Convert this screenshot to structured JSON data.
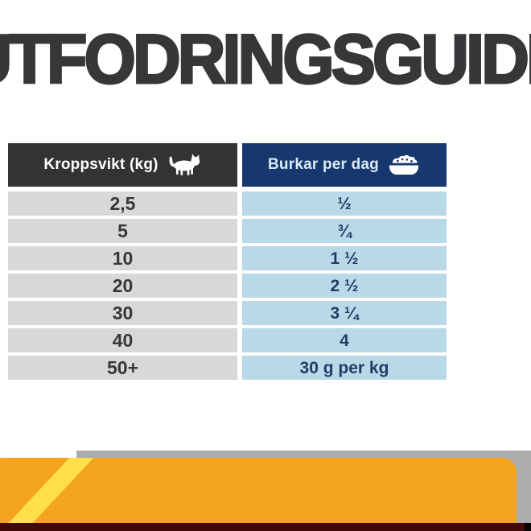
{
  "title": "UTFODRINGSGUIDE",
  "table": {
    "header": {
      "weight_label": "Kroppsvikt (kg)",
      "weight_icon": "cat-icon",
      "burkar_label": "Burkar per dag",
      "burkar_icon": "bowl-icon"
    }
  },
  "chart_data": {
    "type": "table",
    "title": "UTFODRINGSGUIDE",
    "columns": [
      "Kroppsvikt (kg)",
      "Burkar per dag"
    ],
    "rows": [
      {
        "kroppsvikt": "2,5",
        "burkar": "½"
      },
      {
        "kroppsvikt": "5",
        "burkar": "¾"
      },
      {
        "kroppsvikt": "10",
        "burkar": "1 ½"
      },
      {
        "kroppsvikt": "20",
        "burkar": "2 ½"
      },
      {
        "kroppsvikt": "30",
        "burkar": "3 ¼"
      },
      {
        "kroppsvikt": "40",
        "burkar": "4"
      },
      {
        "kroppsvikt": "50+",
        "burkar": "30 g per kg"
      }
    ]
  },
  "colors": {
    "title_text": "#37373a",
    "weight_header_bg": "#333333",
    "burkar_header_bg": "#16386e",
    "weight_cell_bg": "#d8d8d8",
    "burkar_cell_bg": "#b9d8e8",
    "value_text": "#1d3f66",
    "packaging_orange": "#f5a41f",
    "packaging_yellow": "#ffe04a",
    "packaging_maroon": "#420a0a",
    "shelf_gray": "#acacac"
  }
}
